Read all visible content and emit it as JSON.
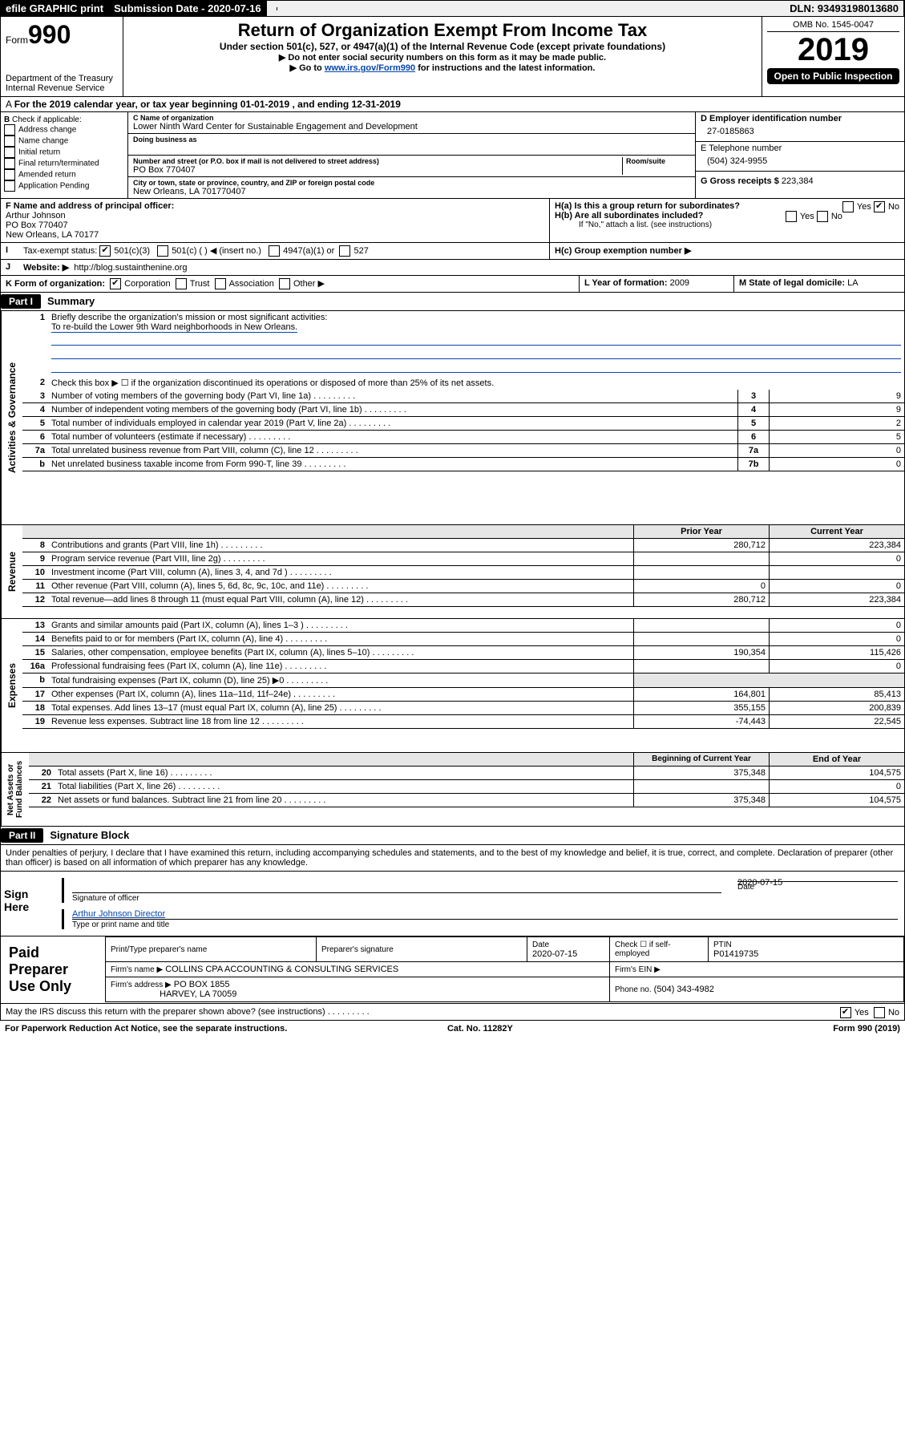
{
  "meta": {
    "efile": "efile GRAPHIC print",
    "subdate_lbl": "Submission Date - 2020-07-16",
    "dln": "DLN: 93493198013680",
    "omb": "OMB No. 1545-0047",
    "form_word": "Form",
    "form_num": "990",
    "title": "Return of Organization Exempt From Income Tax",
    "subtitle": "Under section 501(c), 527, or 4947(a)(1) of the Internal Revenue Code (except private foundations)",
    "note1": "▶ Do not enter social security numbers on this form as it may be made public.",
    "note2_pre": "▶ Go to ",
    "note2_link": "www.irs.gov/Form990",
    "note2_post": " for instructions and the latest information.",
    "year": "2019",
    "open": "Open to Public Inspection",
    "dept": "Department of the Treasury",
    "irs": "Internal Revenue Service"
  },
  "a": "For the 2019 calendar year, or tax year beginning 01-01-2019   , and ending 12-31-2019",
  "b": {
    "hdr": "Check if applicable:",
    "items": [
      "Address change",
      "Name change",
      "Initial return",
      "Final return/terminated",
      "Amended return",
      "Application Pending"
    ]
  },
  "c": {
    "name_lbl": "C Name of organization",
    "name": "Lower Ninth Ward Center for Sustainable Engagement and Development",
    "dba_lbl": "Doing business as",
    "addr_lbl": "Number and street (or P.O. box if mail is not delivered to street address)",
    "room_lbl": "Room/suite",
    "addr": "PO Box 770407",
    "city_lbl": "City or town, state or province, country, and ZIP or foreign postal code",
    "city": "New Orleans, LA  701770407"
  },
  "d": {
    "lbl": "D Employer identification number",
    "val": "27-0185863"
  },
  "e": {
    "lbl": "E Telephone number",
    "val": "(504) 324-9955"
  },
  "g": {
    "lbl": "G Gross receipts $",
    "val": "223,384"
  },
  "f": {
    "lbl": "F  Name and address of principal officer:",
    "name": "Arthur Johnson",
    "addr": "PO Box 770407",
    "city": "New Orleans, LA  70177"
  },
  "h": {
    "a": "H(a)  Is this a group return for subordinates?",
    "b": "H(b)  Are all subordinates included?",
    "b_note": "If \"No,\" attach a list. (see instructions)",
    "c": "H(c)  Group exemption number ▶",
    "yes": "Yes",
    "no": "No"
  },
  "i": {
    "lbl": "Tax-exempt status:",
    "c3": "501(c)(3)",
    "c": "501(c) (  ) ◀ (insert no.)",
    "a1": "4947(a)(1) or",
    "s527": "527"
  },
  "j": {
    "lbl": "Website: ▶",
    "val": "http://blog.sustainthenine.org"
  },
  "k": {
    "lbl": "K Form of organization:",
    "corp": "Corporation",
    "trust": "Trust",
    "assoc": "Association",
    "other": "Other ▶"
  },
  "l": {
    "lbl": "L Year of formation:",
    "val": "2009"
  },
  "m": {
    "lbl": "M State of legal domicile:",
    "val": "LA"
  },
  "parts": {
    "p1": "Part I",
    "p1t": "Summary",
    "p2": "Part II",
    "p2t": "Signature Block",
    "groups": [
      "Activities & Governance",
      "Revenue",
      "Expenses",
      "Net Assets or Fund Balances"
    ]
  },
  "summary": {
    "q1": "Briefly describe the organization's mission or most significant activities:",
    "mission": "To re-build the Lower 9th Ward neighborhoods in New Orleans.",
    "q2": "Check this box ▶ ☐  if the organization discontinued its operations or disposed of more than 25% of its net assets.",
    "lines": [
      {
        "n": "3",
        "t": "Number of voting members of the governing body (Part VI, line 1a)",
        "box": "3",
        "v": "9"
      },
      {
        "n": "4",
        "t": "Number of independent voting members of the governing body (Part VI, line 1b)",
        "box": "4",
        "v": "9"
      },
      {
        "n": "5",
        "t": "Total number of individuals employed in calendar year 2019 (Part V, line 2a)",
        "box": "5",
        "v": "2"
      },
      {
        "n": "6",
        "t": "Total number of volunteers (estimate if necessary)",
        "box": "6",
        "v": "5"
      },
      {
        "n": "7a",
        "t": "Total unrelated business revenue from Part VIII, column (C), line 12",
        "box": "7a",
        "v": "0"
      },
      {
        "n": "b",
        "t": "Net unrelated business taxable income from Form 990-T, line 39",
        "box": "7b",
        "v": "0"
      }
    ],
    "col_prior": "Prior Year",
    "col_curr": "Current Year",
    "rev": [
      {
        "n": "8",
        "t": "Contributions and grants (Part VIII, line 1h)",
        "p": "280,712",
        "c": "223,384"
      },
      {
        "n": "9",
        "t": "Program service revenue (Part VIII, line 2g)",
        "p": "",
        "c": "0"
      },
      {
        "n": "10",
        "t": "Investment income (Part VIII, column (A), lines 3, 4, and 7d )",
        "p": "",
        "c": ""
      },
      {
        "n": "11",
        "t": "Other revenue (Part VIII, column (A), lines 5, 6d, 8c, 9c, 10c, and 11e)",
        "p": "0",
        "c": "0"
      },
      {
        "n": "12",
        "t": "Total revenue—add lines 8 through 11 (must equal Part VIII, column (A), line 12)",
        "p": "280,712",
        "c": "223,384"
      }
    ],
    "exp": [
      {
        "n": "13",
        "t": "Grants and similar amounts paid (Part IX, column (A), lines 1–3 )",
        "p": "",
        "c": "0"
      },
      {
        "n": "14",
        "t": "Benefits paid to or for members (Part IX, column (A), line 4)",
        "p": "",
        "c": "0"
      },
      {
        "n": "15",
        "t": "Salaries, other compensation, employee benefits (Part IX, column (A), lines 5–10)",
        "p": "190,354",
        "c": "115,426"
      },
      {
        "n": "16a",
        "t": "Professional fundraising fees (Part IX, column (A), line 11e)",
        "p": "",
        "c": "0"
      },
      {
        "n": "b",
        "t": "Total fundraising expenses (Part IX, column (D), line 25) ▶0",
        "p": "—",
        "c": "—"
      },
      {
        "n": "17",
        "t": "Other expenses (Part IX, column (A), lines 11a–11d, 11f–24e)",
        "p": "164,801",
        "c": "85,413"
      },
      {
        "n": "18",
        "t": "Total expenses. Add lines 13–17 (must equal Part IX, column (A), line 25)",
        "p": "355,155",
        "c": "200,839"
      },
      {
        "n": "19",
        "t": "Revenue less expenses. Subtract line 18 from line 12",
        "p": "-74,443",
        "c": "22,545"
      }
    ],
    "col_beg": "Beginning of Current Year",
    "col_end": "End of Year",
    "net": [
      {
        "n": "20",
        "t": "Total assets (Part X, line 16)",
        "p": "375,348",
        "c": "104,575"
      },
      {
        "n": "21",
        "t": "Total liabilities (Part X, line 26)",
        "p": "",
        "c": "0"
      },
      {
        "n": "22",
        "t": "Net assets or fund balances. Subtract line 21 from line 20",
        "p": "375,348",
        "c": "104,575"
      }
    ]
  },
  "sig": {
    "decl": "Under penalties of perjury, I declare that I have examined this return, including accompanying schedules and statements, and to the best of my knowledge and belief, it is true, correct, and complete. Declaration of preparer (other than officer) is based on all information of which preparer has any knowledge.",
    "sign_here": "Sign Here",
    "sig_off": "Signature of officer",
    "date": "Date",
    "date_v": "2020-07-15",
    "name": "Arthur Johnson  Director",
    "type_lbl": "Type or print name and title"
  },
  "paid": {
    "title": "Paid Preparer Use Only",
    "h1": "Print/Type preparer's name",
    "h2": "Preparer's signature",
    "h3": "Date",
    "h3v": "2020-07-15",
    "h4": "Check ☐ if self-employed",
    "h5": "PTIN",
    "h5v": "P01419735",
    "firm_lbl": "Firm's name   ▶",
    "firm": "COLLINS CPA ACCOUNTING & CONSULTING SERVICES",
    "ein_lbl": "Firm's EIN ▶",
    "faddr_lbl": "Firm's address ▶",
    "faddr": "PO BOX 1855",
    "fcity": "HARVEY, LA  70059",
    "phone_lbl": "Phone no.",
    "phone": "(504) 343-4982"
  },
  "foot": {
    "q": "May the IRS discuss this return with the preparer shown above? (see instructions)",
    "yes": "Yes",
    "no": "No",
    "pra": "For Paperwork Reduction Act Notice, see the separate instructions.",
    "cat": "Cat. No. 11282Y",
    "form": "Form 990 (2019)"
  }
}
